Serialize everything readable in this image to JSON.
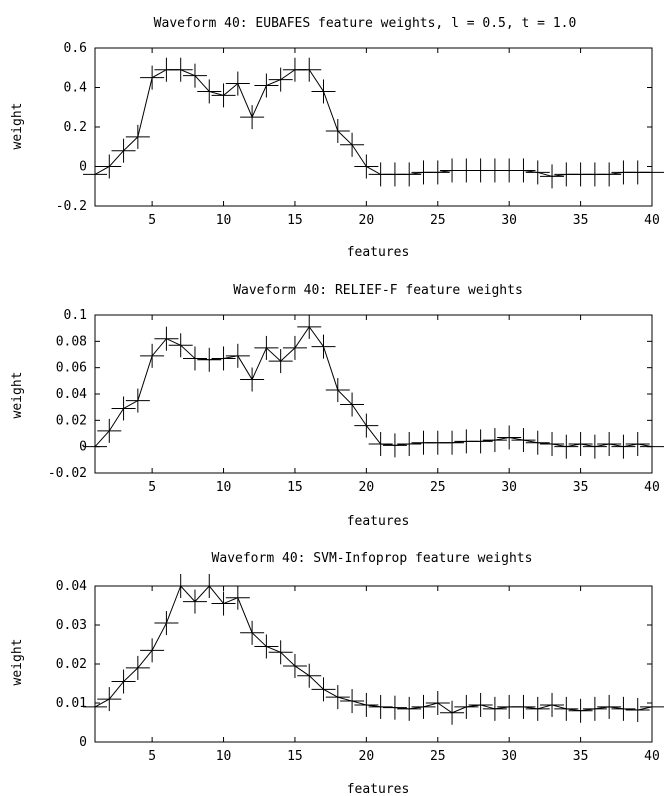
{
  "chart_data": [
    {
      "type": "line",
      "title": "Waveform 40: EUBAFES feature weights, l = 0.5, t = 1.0",
      "xlabel": "features",
      "ylabel": "weight",
      "xlim": [
        1,
        40
      ],
      "ylim": [
        -0.2,
        0.6
      ],
      "xticks": [
        5,
        10,
        15,
        20,
        25,
        30,
        35,
        40
      ],
      "xtick_labels": [
        "5",
        "10",
        "15",
        "20",
        "25",
        "30",
        "35",
        "40"
      ],
      "yticks": [
        -0.2,
        0,
        0.2,
        0.4,
        0.6
      ],
      "ytick_labels": [
        "-0.2",
        "0",
        "0.2",
        "0.4",
        "0.6"
      ],
      "grid": false,
      "marker": "plus",
      "x": [
        1,
        2,
        3,
        4,
        5,
        6,
        7,
        8,
        9,
        10,
        11,
        12,
        13,
        14,
        15,
        16,
        17,
        18,
        19,
        20,
        21,
        22,
        23,
        24,
        25,
        26,
        27,
        28,
        29,
        30,
        31,
        32,
        33,
        34,
        35,
        36,
        37,
        38,
        39,
        40
      ],
      "values": [
        -0.04,
        0.0,
        0.08,
        0.15,
        0.45,
        0.49,
        0.49,
        0.46,
        0.38,
        0.36,
        0.42,
        0.25,
        0.41,
        0.44,
        0.49,
        0.49,
        0.38,
        0.18,
        0.11,
        0.0,
        -0.04,
        -0.04,
        -0.04,
        -0.03,
        -0.03,
        -0.02,
        -0.02,
        -0.02,
        -0.02,
        -0.02,
        -0.02,
        -0.03,
        -0.05,
        -0.04,
        -0.04,
        -0.04,
        -0.04,
        -0.03,
        -0.03,
        -0.03
      ]
    },
    {
      "type": "line",
      "title": "Waveform 40: RELIEF-F feature weights",
      "xlabel": "features",
      "ylabel": "weight",
      "xlim": [
        1,
        40
      ],
      "ylim": [
        -0.02,
        0.1
      ],
      "xticks": [
        5,
        10,
        15,
        20,
        25,
        30,
        35,
        40
      ],
      "xtick_labels": [
        "5",
        "10",
        "15",
        "20",
        "25",
        "30",
        "35",
        "40"
      ],
      "yticks": [
        -0.02,
        0,
        0.02,
        0.04,
        0.06,
        0.08,
        0.1
      ],
      "ytick_labels": [
        "-0.02",
        "0",
        "0.02",
        "0.04",
        "0.06",
        "0.08",
        "0.1"
      ],
      "grid": false,
      "marker": "plus",
      "x": [
        1,
        2,
        3,
        4,
        5,
        6,
        7,
        8,
        9,
        10,
        11,
        12,
        13,
        14,
        15,
        16,
        17,
        18,
        19,
        20,
        21,
        22,
        23,
        24,
        25,
        26,
        27,
        28,
        29,
        30,
        31,
        32,
        33,
        34,
        35,
        36,
        37,
        38,
        39,
        40
      ],
      "values": [
        0.0,
        0.012,
        0.029,
        0.035,
        0.069,
        0.082,
        0.077,
        0.067,
        0.066,
        0.067,
        0.069,
        0.051,
        0.075,
        0.065,
        0.075,
        0.091,
        0.076,
        0.043,
        0.032,
        0.016,
        0.002,
        0.001,
        0.002,
        0.003,
        0.003,
        0.003,
        0.004,
        0.004,
        0.005,
        0.007,
        0.005,
        0.003,
        0.002,
        0.0,
        0.002,
        0.0,
        0.002,
        0.0,
        0.002,
        0.0
      ]
    },
    {
      "type": "line",
      "title": "Waveform 40: SVM-Infoprop feature weights",
      "xlabel": "features",
      "ylabel": "weight",
      "xlim": [
        1,
        40
      ],
      "ylim": [
        0,
        0.04
      ],
      "xticks": [
        5,
        10,
        15,
        20,
        25,
        30,
        35,
        40
      ],
      "xtick_labels": [
        "5",
        "10",
        "15",
        "20",
        "25",
        "30",
        "35",
        "40"
      ],
      "yticks": [
        0,
        0.01,
        0.02,
        0.03,
        0.04
      ],
      "ytick_labels": [
        "0",
        "0.01",
        "0.02",
        "0.03",
        "0.04"
      ],
      "grid": false,
      "marker": "plus",
      "x": [
        1,
        2,
        3,
        4,
        5,
        6,
        7,
        8,
        9,
        10,
        11,
        12,
        13,
        14,
        15,
        16,
        17,
        18,
        19,
        20,
        21,
        22,
        23,
        24,
        25,
        26,
        27,
        28,
        29,
        30,
        31,
        32,
        33,
        34,
        35,
        36,
        37,
        38,
        39,
        40
      ],
      "values": [
        0.009,
        0.011,
        0.0155,
        0.019,
        0.0235,
        0.0305,
        0.04,
        0.036,
        0.04,
        0.0355,
        0.037,
        0.028,
        0.0245,
        0.023,
        0.0195,
        0.017,
        0.0135,
        0.0115,
        0.0105,
        0.0095,
        0.009,
        0.0088,
        0.0085,
        0.009,
        0.01,
        0.0075,
        0.009,
        0.0095,
        0.0085,
        0.009,
        0.009,
        0.0085,
        0.0095,
        0.0085,
        0.008,
        0.0085,
        0.009,
        0.0085,
        0.0082,
        0.009
      ]
    }
  ]
}
